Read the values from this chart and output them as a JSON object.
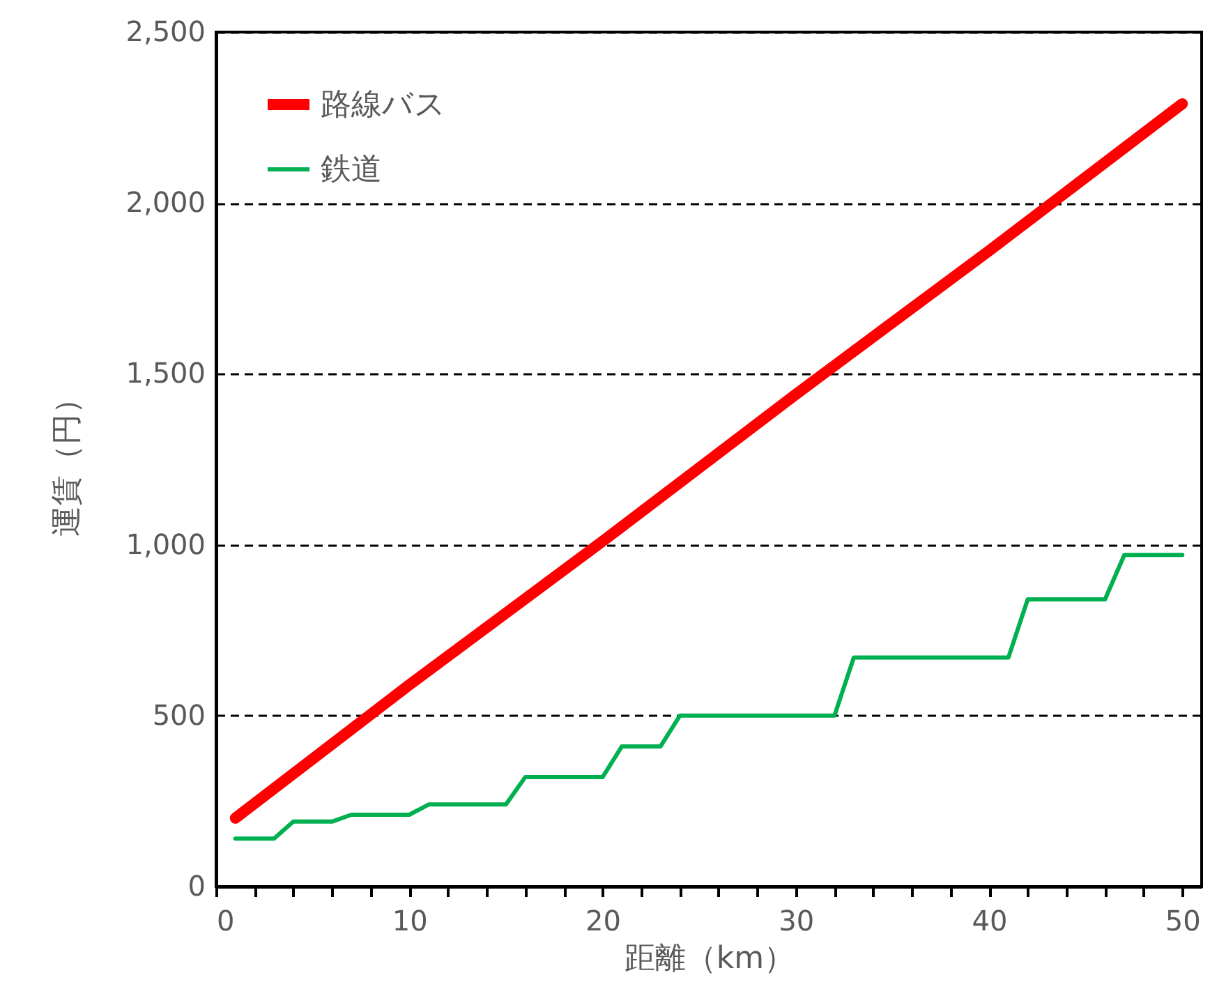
{
  "chart_data": {
    "type": "line",
    "xlabel": "距離（km）",
    "ylabel": "運賃（円）",
    "xlim": [
      0,
      51
    ],
    "xticks": [
      0,
      {
        "value": 2,
        "label": null
      },
      {
        "value": 4,
        "label": null
      },
      {
        "value": 6,
        "label": null
      },
      {
        "value": 8,
        "label": null
      },
      10,
      {
        "value": 12,
        "label": null
      },
      {
        "value": 14,
        "label": null
      },
      {
        "value": 16,
        "label": null
      },
      {
        "value": 18,
        "label": null
      },
      20,
      {
        "value": 22,
        "label": null
      },
      {
        "value": 24,
        "label": null
      },
      {
        "value": 26,
        "label": null
      },
      {
        "value": 28,
        "label": null
      },
      30,
      {
        "value": 32,
        "label": null
      },
      {
        "value": 34,
        "label": null
      },
      {
        "value": 36,
        "label": null
      },
      {
        "value": 38,
        "label": null
      },
      40,
      {
        "value": 42,
        "label": null
      },
      {
        "value": 44,
        "label": null
      },
      {
        "value": 46,
        "label": null
      },
      {
        "value": 48,
        "label": null
      },
      50
    ],
    "ylim": [
      0,
      2500
    ],
    "yticks": [
      {
        "value": 0,
        "label": "0"
      },
      {
        "value": 500,
        "label": "500"
      },
      {
        "value": 1000,
        "label": "1,000"
      },
      {
        "value": 1500,
        "label": "1,500"
      },
      {
        "value": 2000,
        "label": "2,000"
      },
      {
        "value": 2500,
        "label": "2,500"
      }
    ],
    "grid": "y",
    "line_style": "solid",
    "legend": "top left",
    "series": [
      {
        "name": "路線バス",
        "color": "#ff0000",
        "x": [
          1,
          10,
          20,
          30,
          40,
          50
        ],
        "values": [
          200,
          590,
          1010,
          1440,
          1860,
          2290
        ]
      },
      {
        "name": "鉄道",
        "color": "#00b050",
        "x": [
          1,
          2,
          3,
          4,
          5,
          6,
          7,
          8,
          9,
          10,
          11,
          12,
          13,
          14,
          15,
          16,
          17,
          18,
          19,
          20,
          21,
          22,
          23,
          24,
          25,
          26,
          27,
          28,
          29,
          30,
          31,
          32,
          33,
          34,
          35,
          36,
          37,
          38,
          39,
          40,
          41,
          42,
          43,
          44,
          45,
          46,
          47,
          48,
          49,
          50
        ],
        "values": [
          140,
          140,
          140,
          190,
          190,
          190,
          210,
          210,
          210,
          210,
          240,
          240,
          240,
          240,
          240,
          320,
          320,
          320,
          320,
          320,
          410,
          410,
          410,
          500,
          500,
          500,
          500,
          500,
          500,
          500,
          500,
          500,
          670,
          670,
          670,
          670,
          670,
          670,
          670,
          670,
          670,
          840,
          840,
          840,
          840,
          840,
          970,
          970,
          970,
          970
        ]
      }
    ]
  }
}
